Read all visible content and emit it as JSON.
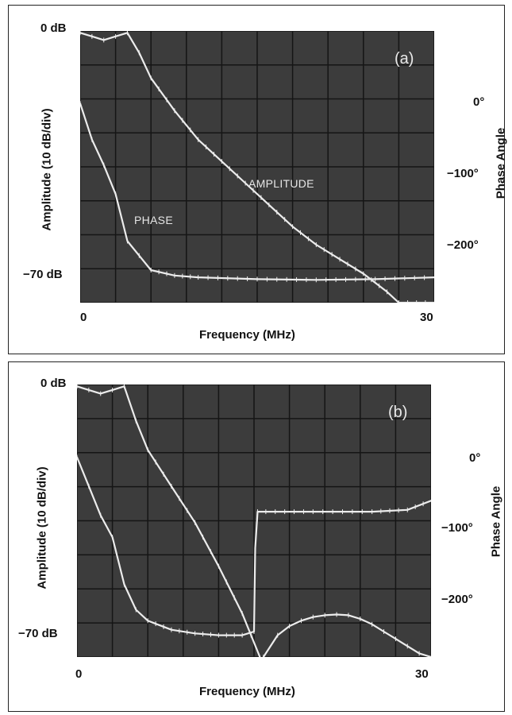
{
  "panels": [
    {
      "tag": "(a)",
      "y_top_label": "0 dB",
      "y_bottom_label": "−70 dB",
      "ylabel_left": "Amplitude (10 dB/div)",
      "ylabel_right": "Phase  Angle",
      "x_start_label": "0",
      "x_end_label": "30",
      "xlabel": "Frequency (MHz)",
      "phase_ticks": [
        "0°",
        "−100°",
        "−200°"
      ],
      "amplitude_label": "AMPLITUDE",
      "phase_label": "PHASE"
    },
    {
      "tag": "(b)",
      "y_top_label": "0 dB",
      "y_bottom_label": "−70 dB",
      "ylabel_left": "Amplitude (10 dB/div)",
      "ylabel_right": "Phase  Angle",
      "x_start_label": "0",
      "x_end_label": "30",
      "xlabel": "Frequency (MHz)",
      "phase_ticks": [
        "0°",
        "−100°",
        "−200°"
      ]
    }
  ],
  "colors": {
    "screen": "#3c3c3c",
    "grid": "#151515",
    "trace": "#ececec"
  },
  "chart_data": [
    {
      "type": "line",
      "xlim": [
        0,
        30
      ],
      "ylim_amplitude_db": [
        -75,
        0
      ],
      "series": [
        {
          "name": "AMPLITUDE",
          "x": [
            0,
            1,
            2,
            3,
            4,
            5,
            6,
            8,
            10,
            12,
            14,
            16,
            18,
            20,
            22,
            24,
            26,
            27,
            30
          ],
          "values": [
            -0.5,
            -1.5,
            -2.5,
            -1.5,
            -0.5,
            -6,
            -13,
            -22,
            -30,
            -36,
            -42,
            -48,
            -54,
            -59,
            -63,
            -67,
            -72,
            -75,
            -75
          ]
        },
        {
          "name": "PHASE",
          "x": [
            0,
            1,
            2,
            3,
            4,
            5,
            6,
            8,
            10,
            15,
            20,
            25,
            30
          ],
          "values": [
            -20,
            -30,
            -37,
            -45,
            -58,
            -62,
            -66,
            -67.5,
            -68,
            -68.5,
            -68.7,
            -68.5,
            -68
          ]
        }
      ]
    },
    {
      "type": "line",
      "xlim": [
        0,
        30
      ],
      "ylim_amplitude_db": [
        -75,
        0
      ],
      "series": [
        {
          "x": [
            0,
            1,
            2,
            3,
            4,
            5,
            6,
            8,
            10,
            12,
            14,
            15.5
          ],
          "values": [
            -0.5,
            -1.5,
            -2.5,
            -1.5,
            -0.5,
            -10,
            -18,
            -28,
            -38,
            -50,
            -63,
            -75
          ]
        },
        {
          "x": [
            15.8,
            17,
            18,
            19,
            20,
            21,
            22,
            23,
            24,
            25,
            26,
            27,
            28,
            29,
            30
          ],
          "values": [
            -75,
            -69,
            -66.5,
            -65,
            -64,
            -63.5,
            -63.3,
            -63.5,
            -64.5,
            -66,
            -68,
            -70,
            -72,
            -74,
            -75
          ]
        },
        {
          "x": [
            0,
            1,
            2,
            3,
            4,
            5,
            6,
            8,
            10,
            12,
            14,
            15,
            15.1,
            15.3,
            16,
            20,
            25,
            28,
            30
          ],
          "values": [
            -20,
            -28,
            -36,
            -42,
            -55,
            -62,
            -65,
            -67.5,
            -68.5,
            -69,
            -69,
            -68,
            -45,
            -35,
            -35,
            -35,
            -35,
            -34.5,
            -32
          ]
        }
      ]
    }
  ]
}
